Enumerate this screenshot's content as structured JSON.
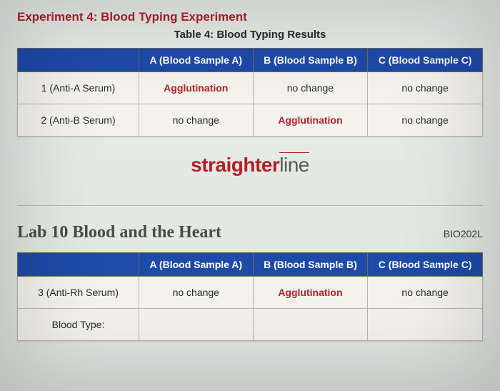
{
  "experiment": {
    "title": "Experiment 4: Blood Typing Experiment"
  },
  "table4": {
    "title": "Table 4: Blood Typing Results",
    "columns": [
      "A (Blood Sample A)",
      "B (Blood Sample B)",
      "C (Blood Sample C)"
    ],
    "rows": [
      {
        "label": "1 (Anti-A Serum)",
        "cells": [
          "Agglutination",
          "no change",
          "no change"
        ]
      },
      {
        "label": "2 (Anti-B Serum)",
        "cells": [
          "no change",
          "Agglutination",
          "no change"
        ]
      }
    ]
  },
  "brand": {
    "part1": "straighter",
    "part2": "line"
  },
  "lab": {
    "title": "Lab 10 Blood and the Heart",
    "course": "BIO202L"
  },
  "table_lower": {
    "columns": [
      "A (Blood Sample A)",
      "B (Blood Sample B)",
      "C (Blood Sample C)"
    ],
    "rows": [
      {
        "label": "3 (Anti-Rh Serum)",
        "cells": [
          "no change",
          "Agglutination",
          "no change"
        ]
      },
      {
        "label": "Blood Type:",
        "cells": [
          "",
          "",
          ""
        ]
      }
    ]
  },
  "style": {
    "header_bg": "#1e4aa8",
    "header_fg": "#ffffff",
    "aggl_color": "#b22028",
    "cell_bg": "#f3f2ec",
    "border_color": "#b8b6a8"
  }
}
